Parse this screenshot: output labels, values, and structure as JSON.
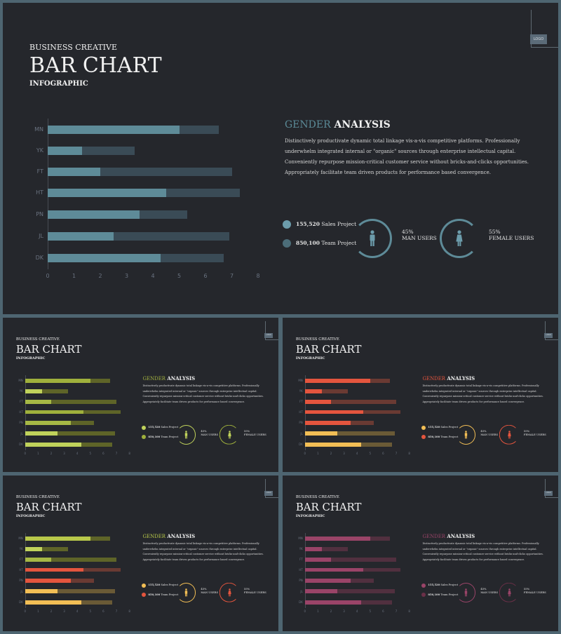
{
  "slides": [
    {
      "kicker": "BUSINESS CREATIVE",
      "title": "BAR CHART",
      "subtitle": "INFOGRAPHIC",
      "page_tag": "LOGO",
      "heading_highlight": "GENDER",
      "heading_rest": "ANALYSIS",
      "body": "Distinctively productivate dynamic total linkage vis-a-vis competitive platforms. Professionally underwhelm integrated internal or \"organic\" sources through enterprise intellectual capital. Conveniently repurpose mission-critical customer service without bricks-and-clicks opportunities. Appropriately facilitate team driven products for performance based convergence.",
      "legend": [
        {
          "value": "155,520",
          "label": "Sales Project"
        },
        {
          "value": "850,100",
          "label": "Team Project"
        }
      ],
      "stats": [
        {
          "percent": "45%",
          "label": "MAN USERS",
          "fraction": 0.45
        },
        {
          "percent": "55%",
          "label": "FEMALE USERS",
          "fraction": 0.55
        }
      ]
    },
    {
      "kicker": "BUSINESS CREATIVE",
      "title": "BAR CHART",
      "subtitle": "INFOGRAPHIC",
      "page_tag": "LOGO",
      "heading_highlight": "GENDER",
      "heading_rest": "ANALYSIS",
      "body": "Distinctively productivate dynamic total linkage vis-a-vis competitive platforms. Professionally underwhelm integrated internal or \"organic\" sources through enterprise intellectual capital. Conveniently repurpose mission-critical customer service without bricks-and-clicks opportunities. Appropriately facilitate team driven products for performance based convergence.",
      "legend": [
        {
          "value": "155,520",
          "label": "Sales Project"
        },
        {
          "value": "850,100",
          "label": "Team Project"
        }
      ],
      "stats": [
        {
          "percent": "45%",
          "label": "MAN USERS",
          "fraction": 0.45
        },
        {
          "percent": "55%",
          "label": "FEMALE USERS",
          "fraction": 0.55
        }
      ]
    },
    {
      "kicker": "BUSINESS CREATIVE",
      "title": "BAR CHART",
      "subtitle": "INFOGRAPHIC",
      "page_tag": "LOGO",
      "heading_highlight": "GENDER",
      "heading_rest": "ANALYSIS",
      "body": "Distinctively productivate dynamic total linkage vis-a-vis competitive platforms. Professionally underwhelm integrated internal or \"organic\" sources through enterprise intellectual capital. Conveniently repurpose mission-critical customer service without bricks-and-clicks opportunities. Appropriately facilitate team driven products for performance based convergence.",
      "legend": [
        {
          "value": "155,520",
          "label": "Sales Project"
        },
        {
          "value": "850,100",
          "label": "Team Project"
        }
      ],
      "stats": [
        {
          "percent": "45%",
          "label": "MAN USERS",
          "fraction": 0.45
        },
        {
          "percent": "55%",
          "label": "FEMALE USERS",
          "fraction": 0.55
        }
      ]
    },
    {
      "kicker": "BUSINESS CREATIVE",
      "title": "BAR CHART",
      "subtitle": "INFOGRAPHIC",
      "page_tag": "LOGO",
      "heading_highlight": "GENDER",
      "heading_rest": "ANALYSIS",
      "body": "Distinctively productivate dynamic total linkage vis-a-vis competitive platforms. Professionally underwhelm integrated internal or \"organic\" sources through enterprise intellectual capital. Conveniently repurpose mission-critical customer service without bricks-and-clicks opportunities. Appropriately facilitate team driven products for performance based convergence.",
      "legend": [
        {
          "value": "155,520",
          "label": "Sales Project"
        },
        {
          "value": "850,100",
          "label": "Team Project"
        }
      ],
      "stats": [
        {
          "percent": "45%",
          "label": "MAN USERS",
          "fraction": 0.45
        },
        {
          "percent": "55%",
          "label": "FEMALE USERS",
          "fraction": 0.55
        }
      ]
    },
    {
      "kicker": "BUSINESS CREATIVE",
      "title": "BAR CHART",
      "subtitle": "INFOGRAPHIC",
      "page_tag": "LOGO",
      "heading_highlight": "GENDER",
      "heading_rest": "ANALYSIS",
      "body": "Distinctively productivate dynamic total linkage vis-a-vis competitive platforms. Professionally underwhelm integrated internal or \"organic\" sources through enterprise intellectual capital. Conveniently repurpose mission-critical customer service without bricks-and-clicks opportunities. Appropriately facilitate team driven products for performance based convergence.",
      "legend": [
        {
          "value": "155,520",
          "label": "Sales Project"
        },
        {
          "value": "850,100",
          "label": "Team Project"
        }
      ],
      "stats": [
        {
          "percent": "45%",
          "label": "MAN USERS",
          "fraction": 0.45
        },
        {
          "percent": "55%",
          "label": "FEMALE USERS",
          "fraction": 0.55
        }
      ]
    }
  ],
  "chart_data": {
    "type": "bar",
    "orientation": "horizontal",
    "stacked": true,
    "categories": [
      "MN",
      "YK",
      "FT",
      "HT",
      "PN",
      "JL",
      "DK"
    ],
    "series": [
      {
        "name": "Sales Project",
        "values": [
          5.0,
          1.3,
          2.0,
          4.5,
          3.5,
          2.5,
          4.3
        ]
      },
      {
        "name": "Team Project",
        "values": [
          1.5,
          2.0,
          5.0,
          2.8,
          1.8,
          4.4,
          2.4
        ]
      }
    ],
    "xlim": [
      0,
      8
    ],
    "xticks": [
      "0",
      "1",
      "2",
      "3",
      "4",
      "5",
      "6",
      "7",
      "8"
    ],
    "grid": false
  },
  "themes": [
    {
      "highlight": "#5b8a97",
      "s1": [
        "#5e8b98",
        "#5e8b98",
        "#5e8b98",
        "#5e8b98",
        "#5e8b98",
        "#5e8b98",
        "#5e8b98"
      ],
      "s2": [
        "#3a4b56",
        "#3a4b56",
        "#3a4b56",
        "#3a4b56",
        "#3a4b56",
        "#3a4b56",
        "#3a4b56"
      ],
      "dots": [
        "#6c9cab",
        "#4c6d79"
      ],
      "rings": [
        "#5e8b98",
        "#5e8b98"
      ],
      "icons": [
        "#6c9cab",
        "#6c9cab"
      ]
    },
    {
      "highlight": "#a3b240",
      "s1": [
        "#9fb03c",
        "#c0d25b",
        "#a6b845",
        "#9fb03c",
        "#a6b845",
        "#c0d25b",
        "#c0d25b"
      ],
      "s2": [
        "#5e6428",
        "#5e6428",
        "#5e6428",
        "#5e6428",
        "#5e6428",
        "#5e6428",
        "#5e6428"
      ],
      "dots": [
        "#c0d25b",
        "#9fb03c"
      ],
      "rings": [
        "#c0d25b",
        "#9fb03c"
      ],
      "icons": [
        "#c0d25b",
        "#c0d25b"
      ]
    },
    {
      "highlight": "#e4553e",
      "s1": [
        "#e4553e",
        "#e4553e",
        "#e4553e",
        "#e4553e",
        "#e4553e",
        "#f2be55",
        "#f2be55"
      ],
      "s2": [
        "#6a3a33",
        "#6a3a33",
        "#6a3a33",
        "#6a3a33",
        "#6a3a33",
        "#6a5a36",
        "#6a5a36"
      ],
      "dots": [
        "#f2be55",
        "#e4553e"
      ],
      "rings": [
        "#f2be55",
        "#e4553e"
      ],
      "icons": [
        "#f2be55",
        "#e4553e"
      ]
    },
    {
      "highlight": "#b8c84a",
      "s1": [
        "#b8c84a",
        "#c0d25b",
        "#a6b845",
        "#e4553e",
        "#e4553e",
        "#f2be55",
        "#f2be55"
      ],
      "s2": [
        "#5e6428",
        "#5e6428",
        "#5e6428",
        "#6a3a33",
        "#6a3a33",
        "#6a5a36",
        "#6a5a36"
      ],
      "dots": [
        "#f2be55",
        "#e4553e"
      ],
      "rings": [
        "#f2be55",
        "#e4553e"
      ],
      "icons": [
        "#f2be55",
        "#e4553e"
      ]
    },
    {
      "highlight": "#9a4468",
      "s1": [
        "#9a4468",
        "#9a4468",
        "#9a4468",
        "#9a4468",
        "#9a4468",
        "#9a4468",
        "#9a4468"
      ],
      "s2": [
        "#51303f",
        "#51303f",
        "#51303f",
        "#51303f",
        "#51303f",
        "#51303f",
        "#51303f"
      ],
      "dots": [
        "#9a4468",
        "#6b3048"
      ],
      "rings": [
        "#9a4468",
        "#6b3048"
      ],
      "icons": [
        "#9a4468",
        "#9a4468"
      ]
    }
  ]
}
